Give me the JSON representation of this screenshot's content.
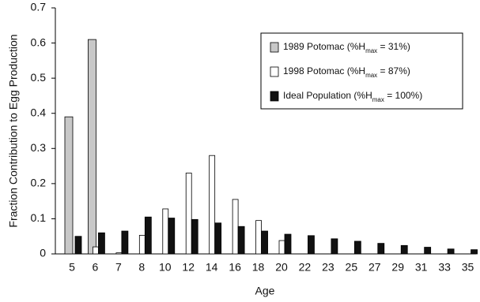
{
  "chart_data": {
    "type": "bar",
    "y_label": "Fraction Contribution to Egg Production",
    "x_label": "Age",
    "categories": [
      "5",
      "6",
      "7",
      "8",
      "10",
      "12",
      "14",
      "16",
      "18",
      "20",
      "22",
      "23",
      "25",
      "27",
      "29",
      "31",
      "33",
      "35"
    ],
    "series": [
      {
        "name": [
          "1989 Potomac (%H",
          "max",
          " = 31%)"
        ],
        "color": "#c8c8c8",
        "values": [
          0.39,
          0.61,
          null,
          null,
          null,
          null,
          null,
          null,
          null,
          null,
          null,
          null,
          null,
          null,
          null,
          null,
          null,
          null
        ]
      },
      {
        "name": [
          "1998 Potomac (%H",
          "max",
          " = 87%)"
        ],
        "color": "#ffffff",
        "values": [
          null,
          0.02,
          0.003,
          0.053,
          0.128,
          0.23,
          0.28,
          0.155,
          0.095,
          0.038,
          null,
          null,
          null,
          null,
          null,
          null,
          null,
          null
        ]
      },
      {
        "name": [
          "Ideal Population (%H",
          "max",
          " = 100%)"
        ],
        "color": "#111111",
        "values": [
          0.05,
          0.06,
          0.065,
          0.105,
          0.102,
          0.098,
          0.088,
          0.078,
          0.065,
          0.056,
          0.052,
          0.043,
          0.036,
          0.03,
          0.024,
          0.019,
          0.014,
          0.012
        ]
      }
    ],
    "ylim": [
      0,
      0.7
    ],
    "yticks": [
      0,
      0.1,
      0.2,
      0.3,
      0.4,
      0.5,
      0.6,
      0.7
    ],
    "grid": false
  }
}
